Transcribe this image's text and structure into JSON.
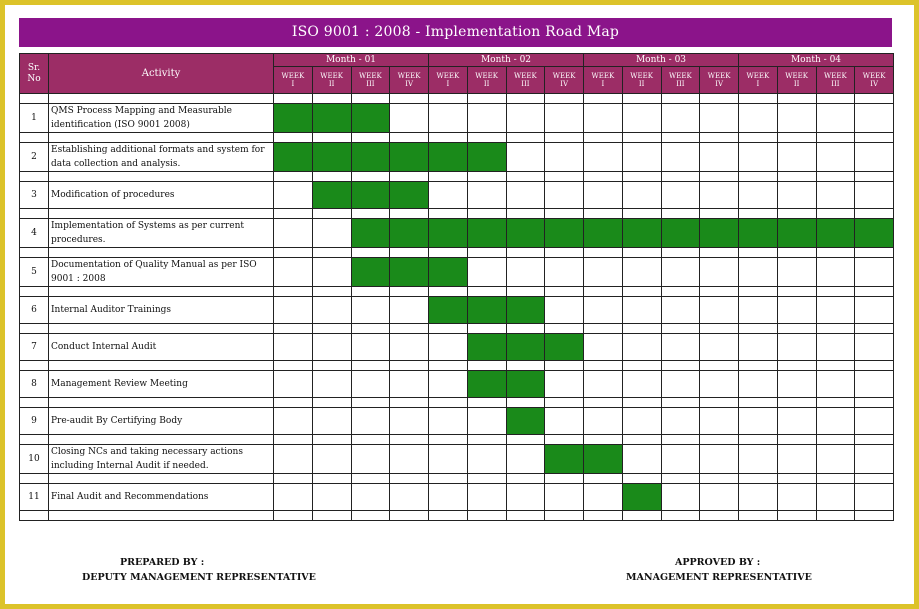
{
  "title": "ISO 9001 : 2008 - Implementation Road Map",
  "header": {
    "sr_no": "Sr.\nNo",
    "activity": "Activity",
    "months": [
      "Month - 01",
      "Month - 02",
      "Month - 03",
      "Month - 04"
    ],
    "week_labels": [
      [
        "WEEK",
        "I"
      ],
      [
        "WEEK",
        "II"
      ],
      [
        "WEEK",
        "III"
      ],
      [
        "WEEK",
        "IV"
      ]
    ]
  },
  "colors": {
    "title_bg": "#8b148a",
    "header_bg": "#9c2d66",
    "bar": "#1a8a1a",
    "border": "#dcc32a"
  },
  "tasks": [
    {
      "sr": "1",
      "activity": "QMS Process Mapping and Measurable identification (ISO 9001 2008)",
      "weeks": [
        1,
        2,
        3
      ]
    },
    {
      "sr": "2",
      "activity": "Establishing additional formats and system for data collection and analysis.",
      "weeks": [
        1,
        2,
        3,
        4,
        5,
        6
      ]
    },
    {
      "sr": "3",
      "activity": "Modification of procedures",
      "weeks": [
        2,
        3,
        4
      ]
    },
    {
      "sr": "4",
      "activity": "Implementation of Systems as per current procedures.",
      "weeks": [
        3,
        4,
        5,
        6,
        7,
        8,
        9,
        10,
        11,
        12,
        13,
        14,
        15,
        16
      ]
    },
    {
      "sr": "5",
      "activity": "Documentation of Quality Manual as per ISO 9001 : 2008",
      "weeks": [
        3,
        4,
        5
      ]
    },
    {
      "sr": "6",
      "activity": "Internal Auditor Trainings",
      "weeks": [
        5,
        6,
        7
      ]
    },
    {
      "sr": "7",
      "activity": "Conduct Internal Audit",
      "weeks": [
        6,
        7,
        8
      ]
    },
    {
      "sr": "8",
      "activity": "Management Review Meeting",
      "weeks": [
        6,
        7
      ]
    },
    {
      "sr": "9",
      "activity": "Pre-audit By Certifying Body",
      "weeks": [
        7
      ]
    },
    {
      "sr": "10",
      "activity": "Closing NCs and taking necessary actions including Internal Audit if needed.",
      "weeks": [
        8,
        9
      ]
    },
    {
      "sr": "11",
      "activity": "Final Audit and Recommendations",
      "weeks": [
        10
      ]
    }
  ],
  "footer": {
    "prepared_label": "PREPARED BY :",
    "prepared_role": "DEPUTY MANAGEMENT REPRESENTATIVE",
    "approved_label": "APPROVED BY :",
    "approved_role": "MANAGEMENT REPRESENTATIVE"
  }
}
